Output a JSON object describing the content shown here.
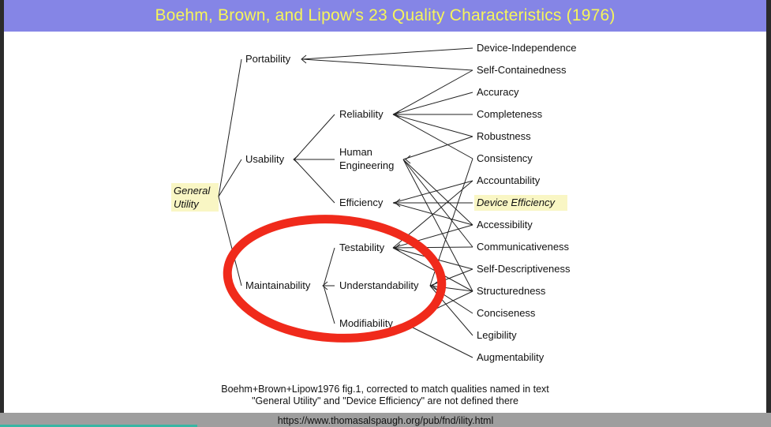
{
  "title": "Boehm, Brown, and Lipow's 23 Quality Characteristics (1976)",
  "root": {
    "line1": "General",
    "line2": "Utility"
  },
  "level1": {
    "portability": "Portability",
    "usability": "Usability",
    "maintainability": "Maintainability"
  },
  "level2": {
    "reliability": "Reliability",
    "human_line1": "Human",
    "human_line2": "Engineering",
    "efficiency": "Efficiency",
    "testability": "Testability",
    "understandability": "Understandability",
    "modifiability": "Modifiability"
  },
  "primitives": [
    "Device-Independence",
    "Self-Containedness",
    "Accuracy",
    "Completeness",
    "Robustness",
    "Consistency",
    "Accountability",
    "Device Efficiency",
    "Accessibility",
    "Communicativeness",
    "Self-Descriptiveness",
    "Structuredness",
    "Conciseness",
    "Legibility",
    "Augmentability"
  ],
  "colors": {
    "title_bar": "#8585e6",
    "title_text": "#f6f55a",
    "highlight": "#f9f6c4",
    "circle": "#f02a1b"
  },
  "caption": {
    "line1": "Boehm+Brown+Lipow1976 fig.1, corrected to match qualities named in text",
    "line2": "\"General Utility\" and \"Device Efficiency\" are not defined there"
  },
  "url": "https://www.thomasalspaugh.org/pub/fnd/ility.html"
}
